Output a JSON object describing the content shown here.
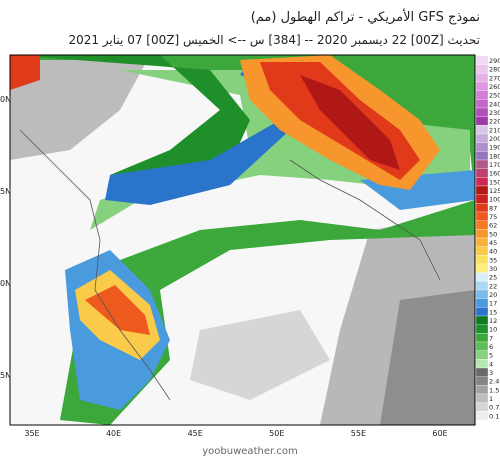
{
  "header": {
    "title": "نموذج GFS الأمريكي  - تراكم الهطول (مم)",
    "subtitle": "تحديث [00Z] 22 ديسمبر 2020 -- [384] س --> الخميس [00Z] 07 يناير 2021"
  },
  "map": {
    "lon_labels": [
      "35E",
      "40E",
      "45E",
      "50E",
      "55E",
      "60E"
    ],
    "lat_labels": [
      "0N",
      "5N",
      "0N",
      "5N"
    ],
    "watermark": "yoobuweather.com"
  },
  "legend": [
    {
      "label": "290",
      "color": "#f2d9f2"
    },
    {
      "label": "280",
      "color": "#ecc6ec"
    },
    {
      "label": "270",
      "color": "#e4b0e6"
    },
    {
      "label": "260",
      "color": "#db98de"
    },
    {
      "label": "250",
      "color": "#cf7fd4"
    },
    {
      "label": "240",
      "color": "#c266c9"
    },
    {
      "label": "230",
      "color": "#b04fb8"
    },
    {
      "label": "220",
      "color": "#9c3aa6"
    },
    {
      "label": "210",
      "color": "#d8c6e8"
    },
    {
      "label": "200",
      "color": "#c4acdb"
    },
    {
      "label": "190",
      "color": "#ad90cc"
    },
    {
      "label": "180",
      "color": "#9676bd"
    },
    {
      "label": "170",
      "color": "#b05a8a"
    },
    {
      "label": "160",
      "color": "#c04070"
    },
    {
      "label": "150",
      "color": "#cc2a55"
    },
    {
      "label": "125",
      "color": "#b01818"
    },
    {
      "label": "100",
      "color": "#c82020"
    },
    {
      "label": "87",
      "color": "#e03a1a"
    },
    {
      "label": "75",
      "color": "#ee5a1e"
    },
    {
      "label": "62",
      "color": "#f47a24"
    },
    {
      "label": "50",
      "color": "#f6962c"
    },
    {
      "label": "45",
      "color": "#f8b03a"
    },
    {
      "label": "40",
      "color": "#facb4a"
    },
    {
      "label": "35",
      "color": "#fbe05e"
    },
    {
      "label": "30",
      "color": "#fdf07a"
    },
    {
      "label": "25",
      "color": "#d8eef8"
    },
    {
      "label": "22",
      "color": "#a9d8f2"
    },
    {
      "label": "20",
      "color": "#78bce8"
    },
    {
      "label": "17",
      "color": "#4a9ade"
    },
    {
      "label": "15",
      "color": "#2a74cc"
    },
    {
      "label": "12",
      "color": "#0f7a22"
    },
    {
      "label": "10",
      "color": "#1f8f2a"
    },
    {
      "label": "7",
      "color": "#3ca73b"
    },
    {
      "label": "6",
      "color": "#5ebd56"
    },
    {
      "label": "5",
      "color": "#86d17d"
    },
    {
      "label": "4",
      "color": "#b5e7b0"
    },
    {
      "label": "3",
      "color": "#6a6a6a"
    },
    {
      "label": "2.4",
      "color": "#858585"
    },
    {
      "label": "1.5",
      "color": "#a2a2a2"
    },
    {
      "label": "1",
      "color": "#bdbdbd"
    },
    {
      "label": "0.7",
      "color": "#d6d6d6"
    },
    {
      "label": "0.1",
      "color": "#eeeeee"
    }
  ]
}
